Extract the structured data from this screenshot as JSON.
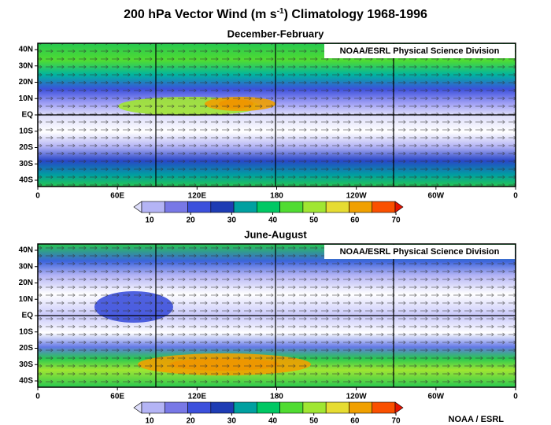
{
  "title": {
    "text": "200 hPa Vector Wind (m s",
    "superscript": "-1",
    "text_after": ") Climatology 1968-1996"
  },
  "panels": [
    {
      "subtitle": "December-February",
      "credit": "NOAA/ESRL Physical Science Division"
    },
    {
      "subtitle": "June-August",
      "credit": "NOAA/ESRL Physical Science Division"
    }
  ],
  "lat_labels": [
    "40N",
    "30N",
    "20N",
    "10N",
    "EQ",
    "10S",
    "20S",
    "30S",
    "40S"
  ],
  "lon_labels": [
    "0",
    "60E",
    "120E",
    "180",
    "120W",
    "60W",
    "0"
  ],
  "colorbar": {
    "ticks": [
      10,
      20,
      30,
      40,
      50,
      60,
      70
    ]
  },
  "footer": "NOAA / ESRL"
}
